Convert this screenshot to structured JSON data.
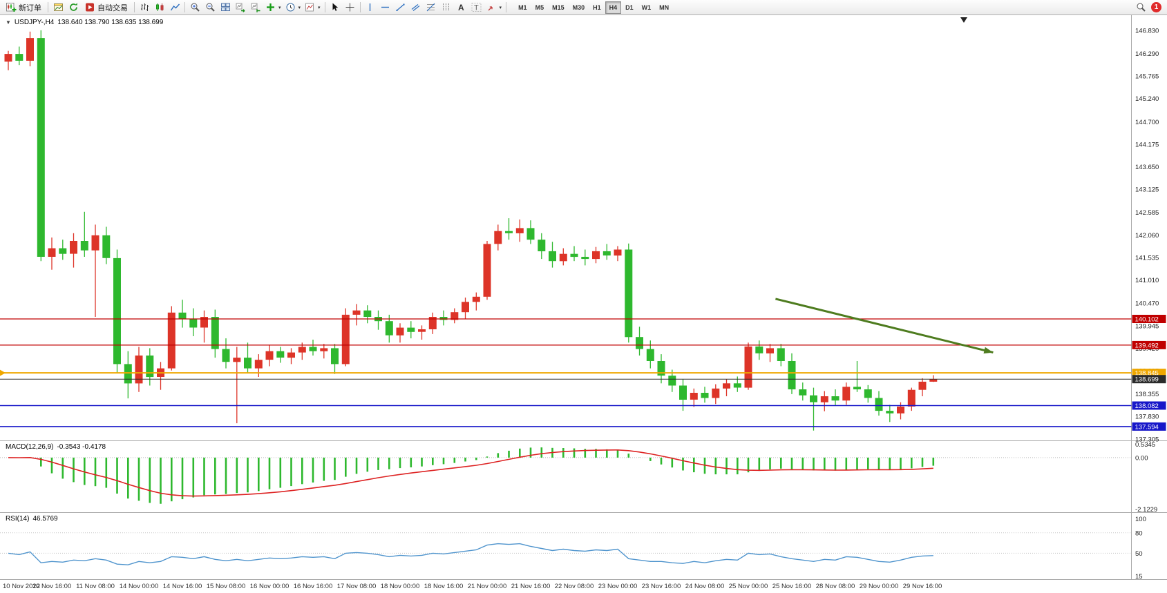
{
  "toolbar": {
    "new_order_label": "新订单",
    "auto_trading_label": "自动交易",
    "timeframes": [
      "M1",
      "M5",
      "M15",
      "M30",
      "H1",
      "H4",
      "D1",
      "W1",
      "MN"
    ],
    "active_timeframe": "H4",
    "notification_count": "1",
    "icons": [
      "new-order",
      "charts",
      "refresh",
      "auto-trading",
      "bar-chart",
      "candle-chart",
      "line-chart",
      "zoom-in",
      "zoom-out",
      "tile-windows",
      "auto-scroll",
      "chart-shift",
      "indicators",
      "periods",
      "templates",
      "cursor",
      "crosshair",
      "vertical-line",
      "horizontal-line",
      "trendline",
      "channel",
      "fibonacci",
      "cycle-lines",
      "text",
      "text-label",
      "arrows",
      "search",
      "notification"
    ]
  },
  "chart_data": {
    "type": "candlestick",
    "symbol": "USDJPY-",
    "timeframe": "H4",
    "title": "USDJPY-,H4",
    "ohlc_display": "138.640 138.790 138.635 138.699",
    "colors": {
      "up": "#dd3428",
      "down": "#2eb82e",
      "red_line": "#c00000",
      "orange_line": "#efa700",
      "blue_line": "#1717c9",
      "current_line": "#2b2b2b",
      "macd_signal": "#dd2222",
      "macd_hist": "#2eb82e",
      "rsi_line": "#4f94cd",
      "arrow": "#4e7c1f"
    },
    "price_axis": {
      "top_price": 147.15,
      "bottom_price": 137.27,
      "ticks": [
        "146.830",
        "146.290",
        "145.765",
        "145.240",
        "144.700",
        "144.175",
        "143.650",
        "143.125",
        "142.585",
        "142.060",
        "141.535",
        "141.010",
        "140.470",
        "139.945",
        "139.420",
        "138.895",
        "138.355",
        "137.830",
        "137.305"
      ]
    },
    "h_lines": [
      {
        "price": 140.102,
        "label": "140.102",
        "color": "#c00000",
        "width": 1.2
      },
      {
        "price": 139.492,
        "label": "139.492",
        "color": "#c00000",
        "width": 1.2
      },
      {
        "price": 138.845,
        "label": "138.845",
        "color": "#efa700",
        "width": 2,
        "marker": true
      },
      {
        "price": 138.082,
        "label": "138.082",
        "color": "#1717c9",
        "width": 1.6
      },
      {
        "price": 137.594,
        "label": "137.594",
        "color": "#1717c9",
        "width": 1.6
      },
      {
        "price": 138.699,
        "label": "138.699",
        "color": "#2b2b2b",
        "width": 1,
        "current": true
      }
    ],
    "trend_arrow": {
      "bar1": 70.5,
      "price1": 140.57,
      "bar2": 90.5,
      "price2": 139.32,
      "color": "#4e7c1f"
    },
    "x_labels": [
      "10 Nov 2022",
      "10 Nov 16:00",
      "11 Nov 08:00",
      "14 Nov 00:00",
      "14 Nov 16:00",
      "15 Nov 08:00",
      "16 Nov 00:00",
      "16 Nov 16:00",
      "17 Nov 08:00",
      "18 Nov 00:00",
      "18 Nov 16:00",
      "21 Nov 00:00",
      "21 Nov 16:00",
      "22 Nov 08:00",
      "23 Nov 00:00",
      "23 Nov 16:00",
      "24 Nov 08:00",
      "25 Nov 00:00",
      "25 Nov 16:00",
      "28 Nov 08:00",
      "29 Nov 00:00",
      "29 Nov 16:00"
    ],
    "candles": [
      [
        146.1,
        146.35,
        145.9,
        146.28
      ],
      [
        146.28,
        146.45,
        146.02,
        146.12
      ],
      [
        146.12,
        146.8,
        145.99,
        146.65
      ],
      [
        146.65,
        146.83,
        141.45,
        141.55
      ],
      [
        141.55,
        142.0,
        141.25,
        141.75
      ],
      [
        141.75,
        141.95,
        141.48,
        141.62
      ],
      [
        141.62,
        142.1,
        141.3,
        141.92
      ],
      [
        141.92,
        142.6,
        141.55,
        141.7
      ],
      [
        141.7,
        142.3,
        140.15,
        142.05
      ],
      [
        142.05,
        142.25,
        141.38,
        141.52
      ],
      [
        141.52,
        141.72,
        138.85,
        139.05
      ],
      [
        139.05,
        139.35,
        138.25,
        138.6
      ],
      [
        138.6,
        139.45,
        138.4,
        139.25
      ],
      [
        139.25,
        139.42,
        138.55,
        138.75
      ],
      [
        138.75,
        139.1,
        138.45,
        138.95
      ],
      [
        138.95,
        140.4,
        138.9,
        140.25
      ],
      [
        140.25,
        140.55,
        139.9,
        140.1
      ],
      [
        140.1,
        140.35,
        139.7,
        139.9
      ],
      [
        139.9,
        140.3,
        139.55,
        140.15
      ],
      [
        140.15,
        140.32,
        139.2,
        139.4
      ],
      [
        139.4,
        139.65,
        138.95,
        139.1
      ],
      [
        139.1,
        139.45,
        137.67,
        139.2
      ],
      [
        139.2,
        139.55,
        138.85,
        138.95
      ],
      [
        138.95,
        139.28,
        138.75,
        139.15
      ],
      [
        139.15,
        139.5,
        139.0,
        139.35
      ],
      [
        139.35,
        139.45,
        139.08,
        139.2
      ],
      [
        139.2,
        139.42,
        139.05,
        139.32
      ],
      [
        139.32,
        139.55,
        139.15,
        139.45
      ],
      [
        139.45,
        139.62,
        139.25,
        139.35
      ],
      [
        139.35,
        139.52,
        139.18,
        139.42
      ],
      [
        139.42,
        139.52,
        138.82,
        139.05
      ],
      [
        139.05,
        140.35,
        139.0,
        140.2
      ],
      [
        140.2,
        140.45,
        139.95,
        140.3
      ],
      [
        140.3,
        140.42,
        140.0,
        140.15
      ],
      [
        140.15,
        140.3,
        139.85,
        140.05
      ],
      [
        140.05,
        140.2,
        139.55,
        139.72
      ],
      [
        139.72,
        140.0,
        139.55,
        139.9
      ],
      [
        139.9,
        140.05,
        139.65,
        139.8
      ],
      [
        139.8,
        139.95,
        139.62,
        139.86
      ],
      [
        139.86,
        140.25,
        139.75,
        140.15
      ],
      [
        140.15,
        140.3,
        139.95,
        140.08
      ],
      [
        140.08,
        140.35,
        140.0,
        140.26
      ],
      [
        140.26,
        140.6,
        140.1,
        140.5
      ],
      [
        140.5,
        140.72,
        140.3,
        140.62
      ],
      [
        140.62,
        141.92,
        140.55,
        141.85
      ],
      [
        141.85,
        142.3,
        141.7,
        142.15
      ],
      [
        142.15,
        142.45,
        141.95,
        142.1
      ],
      [
        142.1,
        142.42,
        141.9,
        142.22
      ],
      [
        142.22,
        142.4,
        141.85,
        141.95
      ],
      [
        141.95,
        142.1,
        141.5,
        141.68
      ],
      [
        141.68,
        141.9,
        141.3,
        141.45
      ],
      [
        141.45,
        141.75,
        141.35,
        141.62
      ],
      [
        141.62,
        141.8,
        141.45,
        141.55
      ],
      [
        141.55,
        141.72,
        141.35,
        141.5
      ],
      [
        141.5,
        141.78,
        141.4,
        141.68
      ],
      [
        141.68,
        141.85,
        141.48,
        141.58
      ],
      [
        141.58,
        141.8,
        141.45,
        141.72
      ],
      [
        141.72,
        141.86,
        139.55,
        139.68
      ],
      [
        139.68,
        139.92,
        139.25,
        139.4
      ],
      [
        139.4,
        139.6,
        138.95,
        139.12
      ],
      [
        139.12,
        139.28,
        138.6,
        138.78
      ],
      [
        138.78,
        138.92,
        138.4,
        138.55
      ],
      [
        138.55,
        138.7,
        137.96,
        138.22
      ],
      [
        138.22,
        138.48,
        138.05,
        138.38
      ],
      [
        138.38,
        138.52,
        138.15,
        138.26
      ],
      [
        138.26,
        138.58,
        138.12,
        138.48
      ],
      [
        138.48,
        138.7,
        138.3,
        138.6
      ],
      [
        138.6,
        138.76,
        138.4,
        138.5
      ],
      [
        138.5,
        139.55,
        138.45,
        139.46
      ],
      [
        139.46,
        139.6,
        139.15,
        139.3
      ],
      [
        139.3,
        139.52,
        139.1,
        139.42
      ],
      [
        139.42,
        139.52,
        139.0,
        139.12
      ],
      [
        139.12,
        139.3,
        138.35,
        138.46
      ],
      [
        138.46,
        138.62,
        138.2,
        138.32
      ],
      [
        138.32,
        138.5,
        137.5,
        138.16
      ],
      [
        138.16,
        138.42,
        137.95,
        138.3
      ],
      [
        138.3,
        138.46,
        138.08,
        138.2
      ],
      [
        138.2,
        138.62,
        138.1,
        138.52
      ],
      [
        138.52,
        139.12,
        138.4,
        138.46
      ],
      [
        138.46,
        138.56,
        138.15,
        138.26
      ],
      [
        138.26,
        138.42,
        137.85,
        137.96
      ],
      [
        137.96,
        138.1,
        137.7,
        137.9
      ],
      [
        137.9,
        138.16,
        137.76,
        138.06
      ],
      [
        138.06,
        138.5,
        137.96,
        138.45
      ],
      [
        138.45,
        138.72,
        138.3,
        138.64
      ],
      [
        138.64,
        138.79,
        138.635,
        138.699
      ]
    ],
    "indicators": {
      "macd": {
        "label": "MACD(12,26,9)",
        "values": "-0.3543 -0.4178",
        "fast": 12,
        "slow": 26,
        "signal": 9,
        "scale": {
          "top": "0.5345",
          "zero": "0.00",
          "bottom": "-2.1229"
        }
      },
      "rsi": {
        "label": "RSI(14)",
        "value": "46.5769",
        "period": 14,
        "levels": [
          80,
          50
        ],
        "scale_ticks": [
          "100",
          "80",
          "50",
          "15"
        ],
        "values": [
          50,
          48,
          52,
          36,
          38,
          37,
          40,
          39,
          42,
          40,
          34,
          33,
          38,
          36,
          38,
          45,
          44,
          42,
          45,
          41,
          39,
          41,
          39,
          41,
          43,
          42,
          43,
          45,
          44,
          45,
          42,
          50,
          51,
          50,
          48,
          45,
          47,
          46,
          47,
          50,
          49,
          51,
          53,
          55,
          62,
          64,
          63,
          64,
          60,
          57,
          54,
          56,
          54,
          53,
          55,
          54,
          56,
          42,
          40,
          38,
          38,
          36,
          35,
          38,
          36,
          39,
          41,
          40,
          50,
          48,
          49,
          45,
          42,
          40,
          38,
          41,
          40,
          45,
          44,
          41,
          38,
          37,
          40,
          44,
          46,
          46.58
        ]
      }
    }
  }
}
